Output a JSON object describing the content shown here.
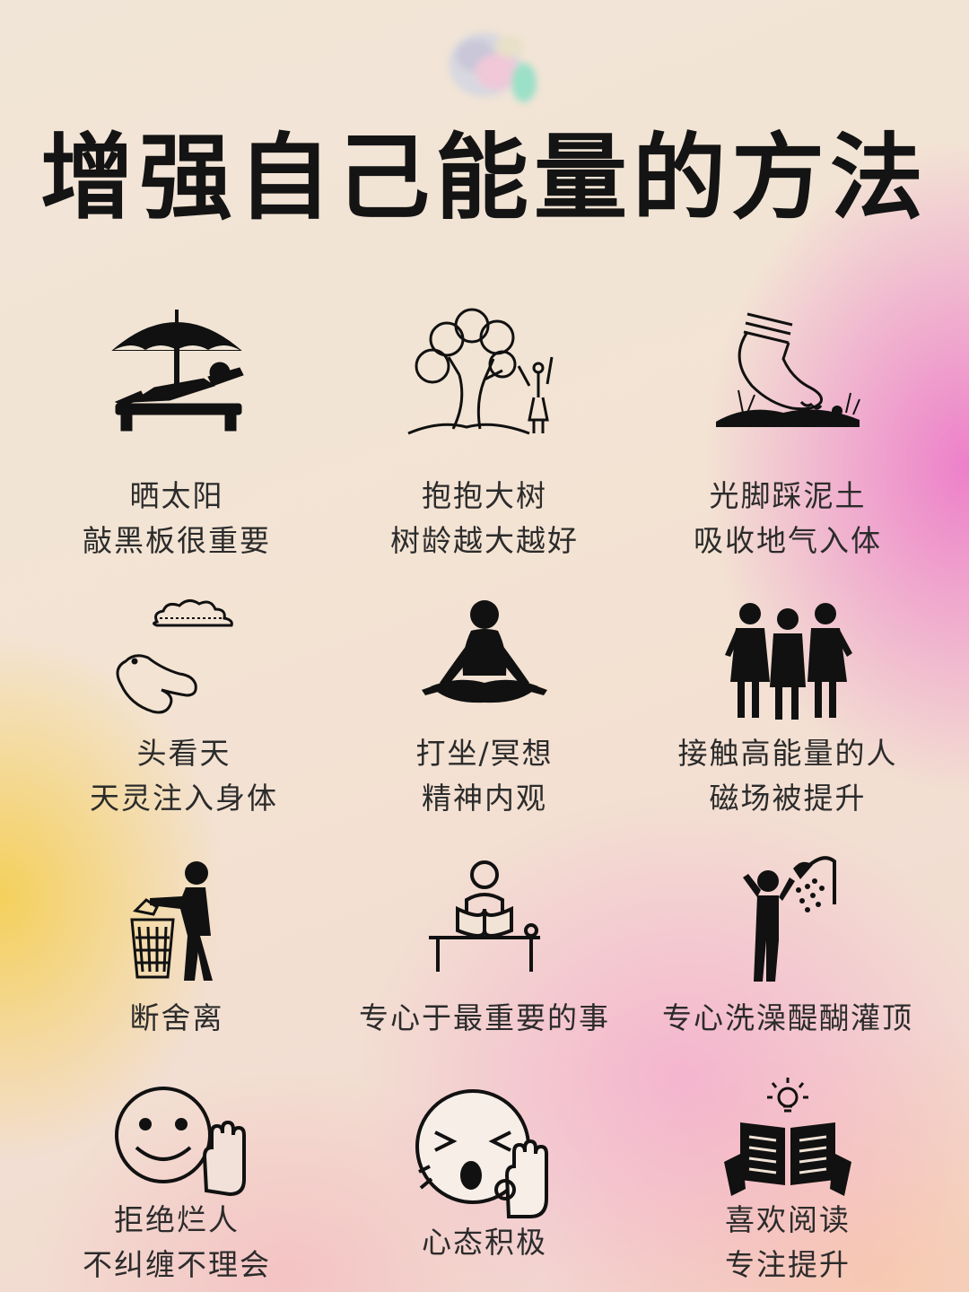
{
  "title": "增强自己能量的方法",
  "items": [
    {
      "line1": "晒太阳",
      "line2": "敲黑板很重要",
      "icon": "sunbathing-icon"
    },
    {
      "line1": "抱抱大树",
      "line2": "树龄越大越好",
      "icon": "tree-hug-icon"
    },
    {
      "line1": "光脚踩泥土",
      "line2": "吸收地气入体",
      "icon": "barefoot-soil-icon"
    },
    {
      "line1": "头看天",
      "line2": "天灵注入身体",
      "icon": "sky-gazing-icon"
    },
    {
      "line1": "打坐/冥想",
      "line2": "精神内观",
      "icon": "meditation-icon"
    },
    {
      "line1": "接触高能量的人",
      "line2": "磁场被提升",
      "icon": "people-group-icon"
    },
    {
      "line1": "断舍离",
      "line2": "",
      "icon": "trash-declutter-icon"
    },
    {
      "line1": "专心于最重要的事",
      "line2": "",
      "icon": "reading-desk-icon"
    },
    {
      "line1": "专心洗澡醍醐灌顶",
      "line2": "",
      "icon": "shower-icon"
    },
    {
      "line1": "拒绝烂人",
      "line2": "不纠缠不理会",
      "icon": "smiley-stop-hand-icon"
    },
    {
      "line1": "心态积极",
      "line2": "",
      "icon": "shouting-face-icon"
    },
    {
      "line1": "喜欢阅读",
      "line2": "专注提升",
      "icon": "book-idea-icon"
    }
  ],
  "colors": {
    "text": "#2b2b2b",
    "title": "#141414",
    "icon": "#111111",
    "pink": "#ec6ec8",
    "yellow": "#f5cd46"
  }
}
